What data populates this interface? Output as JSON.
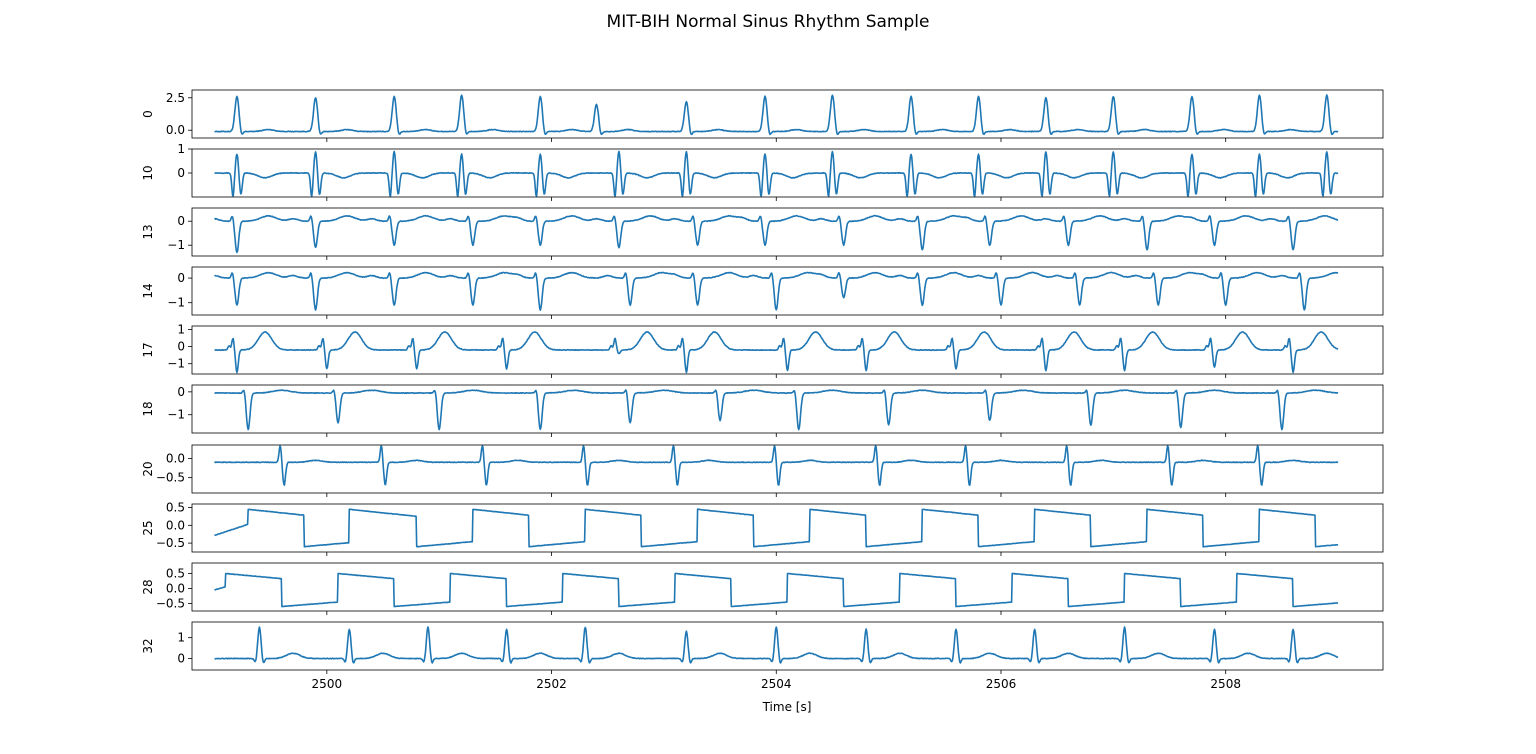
{
  "title": "MIT-BIH Normal Sinus Rhythm Sample",
  "chart_data": {
    "type": "line",
    "title": "MIT-BIH Normal Sinus Rhythm Sample",
    "xlabel": "Time [s]",
    "xlim": [
      2498.8,
      2509.4
    ],
    "x_range_data": [
      2499.0,
      2509.0
    ],
    "xticks": [
      2500,
      2502,
      2504,
      2506,
      2508
    ],
    "xtick_labels": [
      "2500",
      "2502",
      "2504",
      "2506",
      "2508"
    ],
    "line_color": "#1f77b4",
    "grid": false,
    "legend": "none",
    "panels": [
      {
        "ylabel": "0",
        "ylim": [
          -0.6,
          3.1
        ],
        "yticks": [
          0.0,
          2.5
        ],
        "ytick_labels": [
          "0.0",
          "2.5"
        ],
        "morphology": "r_wave",
        "beats": [
          2499.2,
          2499.9,
          2500.6,
          2501.2,
          2501.9,
          2502.4,
          2503.2,
          2503.9,
          2504.5,
          2505.2,
          2505.8,
          2506.4,
          2507.0,
          2507.7,
          2508.3,
          2508.9
        ],
        "amps": [
          2.7,
          2.6,
          2.7,
          2.8,
          2.7,
          2.1,
          2.3,
          2.7,
          2.8,
          2.7,
          2.7,
          2.6,
          2.7,
          2.7,
          2.8,
          2.8
        ],
        "baseline": -0.1
      },
      {
        "ylabel": "10",
        "ylim": [
          -1.0,
          1.0
        ],
        "yticks": [
          0,
          1
        ],
        "ytick_labels": [
          "0",
          "1"
        ],
        "morphology": "biphasic",
        "beats": [
          2499.2,
          2499.9,
          2500.6,
          2501.2,
          2501.9,
          2502.6,
          2503.2,
          2503.9,
          2504.5,
          2505.2,
          2505.8,
          2506.4,
          2507.0,
          2507.7,
          2508.3,
          2508.9
        ],
        "amps": [
          0.8,
          0.9,
          0.9,
          0.8,
          0.8,
          0.9,
          0.9,
          0.8,
          0.9,
          0.8,
          0.8,
          0.9,
          0.9,
          0.8,
          0.8,
          0.9
        ],
        "baseline": 0.0
      },
      {
        "ylabel": "13",
        "ylim": [
          -1.45,
          0.55
        ],
        "yticks": [
          -1,
          0
        ],
        "ytick_labels": [
          "−1",
          "0"
        ],
        "morphology": "s_wave",
        "beats": [
          2499.2,
          2499.9,
          2500.6,
          2501.3,
          2501.9,
          2502.6,
          2503.3,
          2503.9,
          2504.6,
          2505.3,
          2505.9,
          2506.6,
          2507.3,
          2507.9,
          2508.6
        ],
        "amps": [
          -1.3,
          -1.1,
          -1.0,
          -1.0,
          -1.0,
          -1.1,
          -1.0,
          -1.0,
          -1.0,
          -1.2,
          -1.0,
          -1.0,
          -1.2,
          -1.0,
          -1.2
        ],
        "baseline": 0.0
      },
      {
        "ylabel": "14",
        "ylim": [
          -1.5,
          0.45
        ],
        "yticks": [
          -1,
          0
        ],
        "ytick_labels": [
          "−1",
          "0"
        ],
        "morphology": "s_wave",
        "beats": [
          2499.2,
          2499.9,
          2500.6,
          2501.3,
          2501.9,
          2502.7,
          2503.3,
          2504.0,
          2504.6,
          2505.3,
          2506.0,
          2506.7,
          2507.4,
          2508.0,
          2508.7
        ],
        "amps": [
          -1.1,
          -1.3,
          -1.1,
          -1.1,
          -1.3,
          -1.1,
          -1.1,
          -1.3,
          -0.8,
          -1.1,
          -1.1,
          -1.1,
          -1.1,
          -1.1,
          -1.3
        ],
        "baseline": 0.0
      },
      {
        "ylabel": "17",
        "ylim": [
          -1.6,
          1.2
        ],
        "yticks": [
          -1,
          0,
          1
        ],
        "ytick_labels": [
          "−1",
          "0",
          "1"
        ],
        "morphology": "qrs_t",
        "beats": [
          2499.2,
          2500.0,
          2500.8,
          2501.6,
          2502.6,
          2503.2,
          2504.1,
          2504.8,
          2505.6,
          2506.4,
          2507.1,
          2507.9,
          2508.6
        ],
        "amps": [
          -1.3,
          -1.1,
          -1.1,
          -1.1,
          -0.2,
          -1.3,
          -1.2,
          -1.2,
          -1.1,
          -1.2,
          -1.2,
          -1.0,
          -1.3
        ],
        "baseline": -0.2
      },
      {
        "ylabel": "18",
        "ylim": [
          -1.8,
          0.3
        ],
        "yticks": [
          -1,
          0
        ],
        "ytick_labels": [
          "−1",
          "0"
        ],
        "morphology": "s_wave_t",
        "beats": [
          2499.3,
          2500.1,
          2501.0,
          2501.9,
          2502.7,
          2503.5,
          2504.2,
          2505.0,
          2505.9,
          2506.8,
          2507.6,
          2508.5
        ],
        "amps": [
          -1.6,
          -1.3,
          -1.6,
          -1.6,
          -1.3,
          -1.2,
          -1.6,
          -1.4,
          -1.2,
          -1.4,
          -1.5,
          -1.6
        ],
        "baseline": -0.05
      },
      {
        "ylabel": "20",
        "ylim": [
          -0.9,
          0.35
        ],
        "yticks": [
          -0.5,
          0.0
        ],
        "ytick_labels": [
          "−0.5",
          "0.0"
        ],
        "morphology": "rs",
        "beats": [
          2499.6,
          2500.5,
          2501.4,
          2502.3,
          2503.1,
          2504.0,
          2504.9,
          2505.7,
          2506.6,
          2507.5,
          2508.3
        ],
        "amps": [
          -0.7,
          -0.7,
          -0.7,
          -0.7,
          -0.7,
          -0.7,
          -0.7,
          -0.7,
          -0.7,
          -0.7,
          -0.7
        ],
        "baseline": -0.1
      },
      {
        "ylabel": "25",
        "ylim": [
          -0.75,
          0.6
        ],
        "yticks": [
          -0.5,
          0.0,
          0.5
        ],
        "ytick_labels": [
          "−0.5",
          "0.0",
          "0.5"
        ],
        "morphology": "sawtooth",
        "resets": [
          2499.3,
          2500.2,
          2501.3,
          2502.3,
          2503.3,
          2504.3,
          2505.3,
          2506.3,
          2507.3,
          2508.3
        ],
        "falls": [
          2499.8,
          2500.8,
          2501.8,
          2502.8,
          2503.8,
          2504.8,
          2505.8,
          2506.8,
          2507.8,
          2508.8
        ],
        "high": 0.45,
        "low": -0.6
      },
      {
        "ylabel": "28",
        "ylim": [
          -0.75,
          0.85
        ],
        "yticks": [
          -0.5,
          0.0,
          0.5
        ],
        "ytick_labels": [
          "−0.5",
          "0.0",
          "0.5"
        ],
        "morphology": "sawtooth",
        "resets": [
          2499.1,
          2500.1,
          2501.1,
          2502.1,
          2503.1,
          2504.1,
          2505.1,
          2506.1,
          2507.1,
          2508.1
        ],
        "falls": [
          2499.6,
          2500.6,
          2501.6,
          2502.6,
          2503.6,
          2504.6,
          2505.6,
          2506.6,
          2507.6,
          2508.6
        ],
        "high": 0.5,
        "low": -0.6
      },
      {
        "ylabel": "32",
        "ylim": [
          -0.55,
          1.75
        ],
        "yticks": [
          0,
          1
        ],
        "ytick_labels": [
          "0",
          "1"
        ],
        "morphology": "r_wave_t",
        "beats": [
          2499.4,
          2500.2,
          2500.9,
          2501.6,
          2502.3,
          2503.2,
          2504.0,
          2504.8,
          2505.6,
          2506.3,
          2507.1,
          2507.9,
          2508.6
        ],
        "amps": [
          1.5,
          1.4,
          1.5,
          1.4,
          1.5,
          1.3,
          1.5,
          1.4,
          1.4,
          1.4,
          1.5,
          1.4,
          1.4
        ],
        "baseline": 0.0
      }
    ]
  }
}
